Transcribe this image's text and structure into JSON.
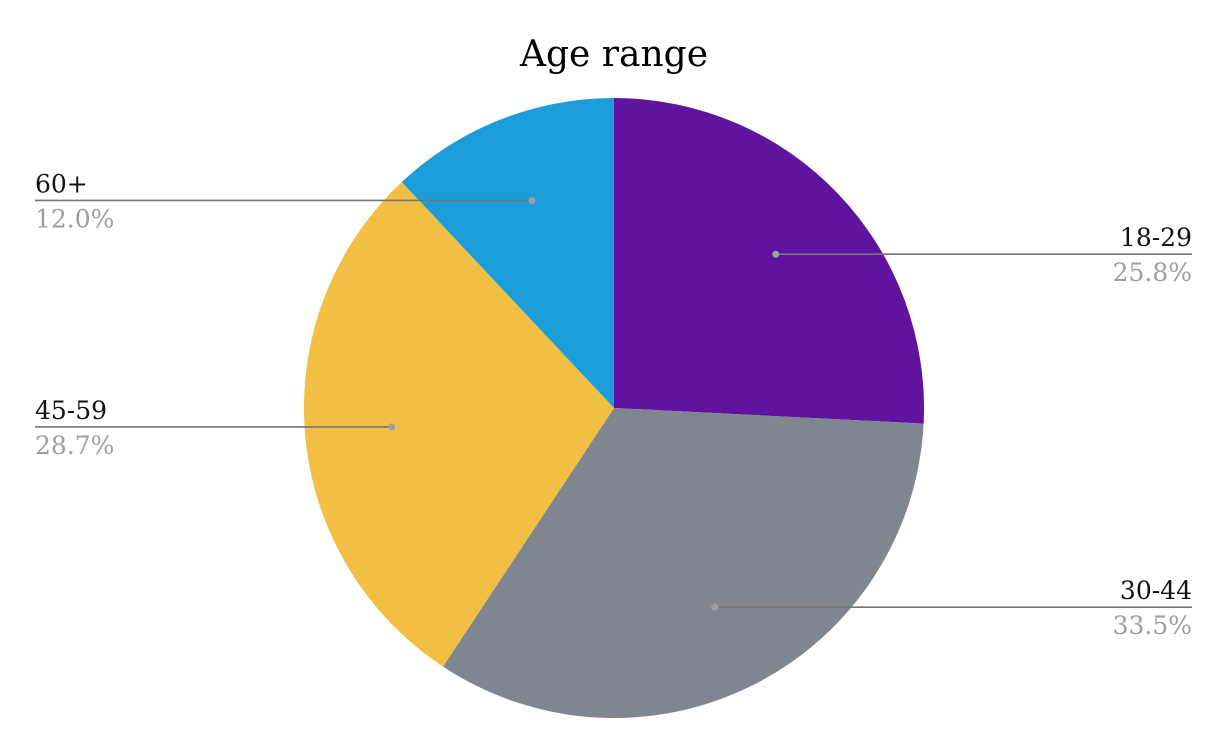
{
  "chart_data": {
    "type": "pie",
    "title": "Age range",
    "slices": [
      {
        "label": "18-29",
        "value": 25.8,
        "display": "25.8%",
        "color": "#5f14a0"
      },
      {
        "label": "30-44",
        "value": 33.5,
        "display": "33.5%",
        "color": "#80868f"
      },
      {
        "label": "45-59",
        "value": 28.7,
        "display": "28.7%",
        "color": "#f0bf43"
      },
      {
        "label": "60+",
        "value": 12.0,
        "display": "12.0%",
        "color": "#1b9dd9"
      }
    ],
    "legend": "labels on leader lines"
  }
}
